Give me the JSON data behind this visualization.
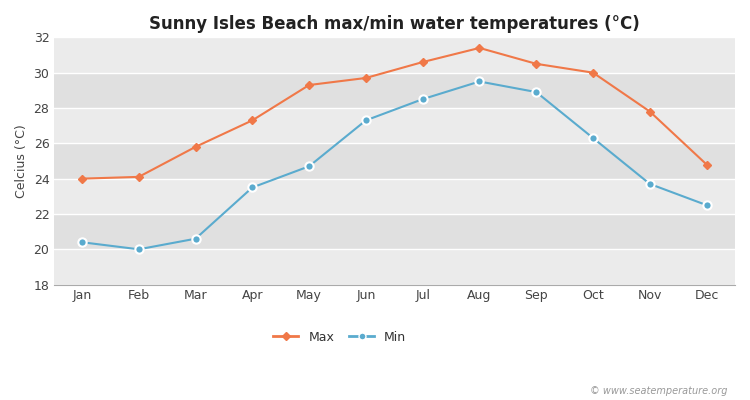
{
  "title": "Sunny Isles Beach max/min water temperatures (°C)",
  "ylabel": "Celcius (°C)",
  "months": [
    "Jan",
    "Feb",
    "Mar",
    "Apr",
    "May",
    "Jun",
    "Jul",
    "Aug",
    "Sep",
    "Oct",
    "Nov",
    "Dec"
  ],
  "max_temps": [
    24.0,
    24.1,
    25.8,
    27.3,
    29.3,
    29.7,
    30.6,
    31.4,
    30.5,
    30.0,
    27.8,
    24.8
  ],
  "min_temps": [
    20.4,
    20.0,
    20.6,
    23.5,
    24.7,
    27.3,
    28.5,
    29.5,
    28.9,
    26.3,
    23.7,
    22.5
  ],
  "max_color": "#f07848",
  "min_color": "#5aabce",
  "bg_color_light": "#ebebeb",
  "bg_color_dark": "#e0e0e0",
  "fig_bg": "#ffffff",
  "ylim": [
    18,
    32
  ],
  "yticks": [
    18,
    20,
    22,
    24,
    26,
    28,
    30,
    32
  ],
  "legend_labels": [
    "Max",
    "Min"
  ],
  "watermark": "© www.seatemperature.org",
  "title_fontsize": 12,
  "axis_fontsize": 9,
  "tick_fontsize": 9,
  "legend_fontsize": 9
}
